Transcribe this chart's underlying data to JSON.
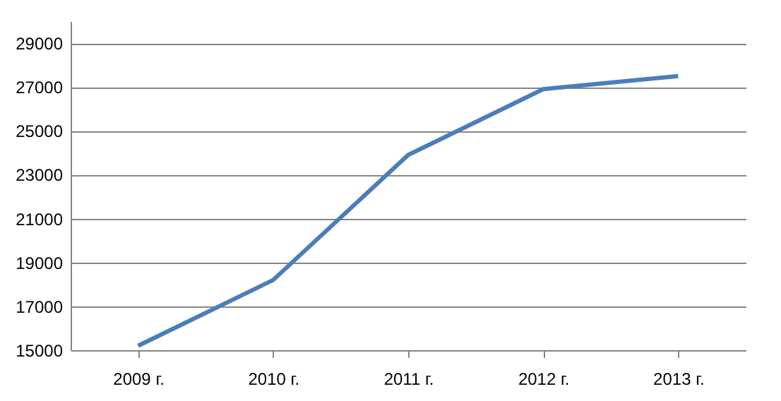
{
  "chart_data": {
    "type": "line",
    "categories": [
      "2009 г.",
      "2010 г.",
      "2011 г.",
      "2012 г.",
      "2013 г."
    ],
    "series": [
      {
        "color": "#4a7ebb",
        "values": [
          15200,
          18200,
          23900,
          26900,
          27500
        ]
      }
    ],
    "ylim": [
      15000,
      30000
    ],
    "yticks": [
      15000,
      17000,
      19000,
      21000,
      23000,
      25000,
      27000,
      29000
    ],
    "grid": "y",
    "marker": "none",
    "line_style": "solid"
  }
}
